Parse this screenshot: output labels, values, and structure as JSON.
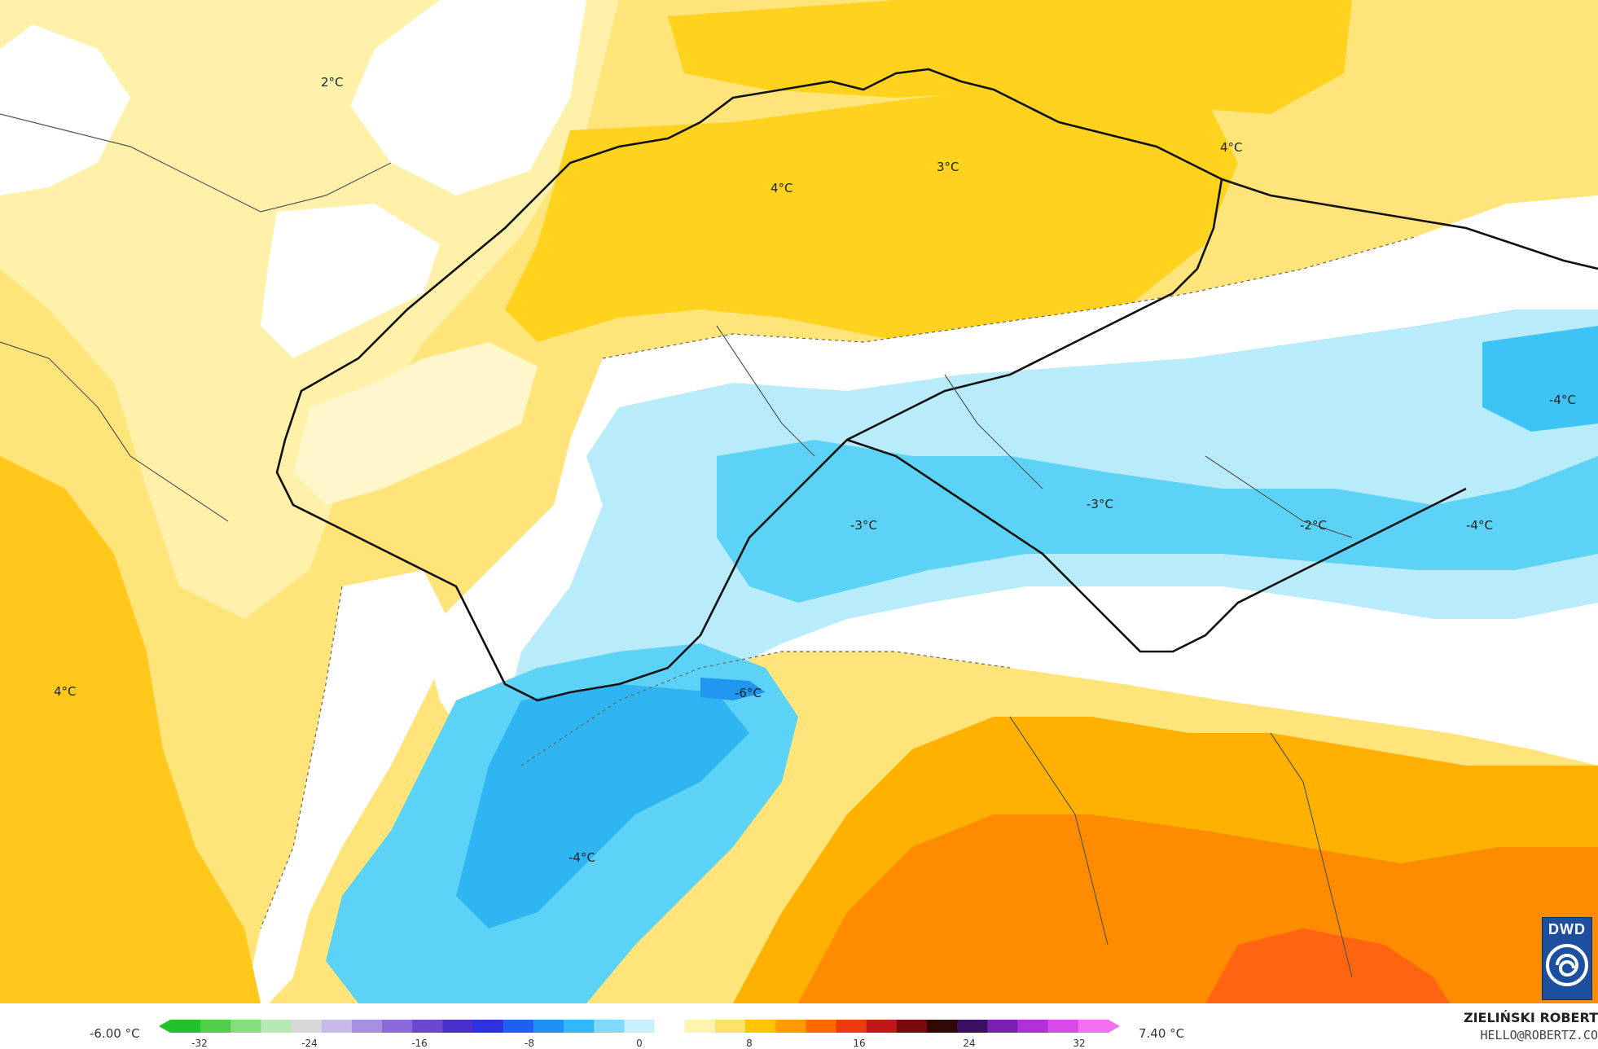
{
  "map": {
    "labels": [
      {
        "text": "2°C"
      },
      {
        "text": "4°C"
      },
      {
        "text": "3°C"
      },
      {
        "text": "4°C"
      },
      {
        "text": "-4°C"
      },
      {
        "text": "-3°C"
      },
      {
        "text": "-3°C"
      },
      {
        "text": "-2°C"
      },
      {
        "text": "-4°C"
      },
      {
        "text": "4°C"
      },
      {
        "text": "-6°C"
      },
      {
        "text": "-4°C"
      }
    ]
  },
  "scale": {
    "min_label": "-6.00 °C",
    "max_label": "7.40 °C",
    "ticks": [
      "-32",
      "-24",
      "-16",
      "-8",
      "0",
      "8",
      "16",
      "24",
      "32"
    ],
    "colors": [
      "#22c02a",
      "#4fcf4a",
      "#86dd80",
      "#b7e9b3",
      "#d8d8d8",
      "#c8b8e8",
      "#a890e0",
      "#8a6ad8",
      "#6a48d0",
      "#4a2fc8",
      "#2f30e0",
      "#2060f0",
      "#2090f5",
      "#30b8f8",
      "#80d8fa",
      "#c8f0fc",
      "#ffffff",
      "#fff3b0",
      "#ffe06a",
      "#ffc400",
      "#ff9a00",
      "#ff6a00",
      "#ee3a10",
      "#c01818",
      "#7a0a0a",
      "#300808",
      "#3a1060",
      "#7a20b0",
      "#b030d8",
      "#d84ae8",
      "#f070f0"
    ]
  },
  "credit": {
    "name": "ZIELIŃSKI ROBERT",
    "email": "HELLO@ROBERTZ.CO"
  },
  "logo": {
    "text": "DWD"
  }
}
